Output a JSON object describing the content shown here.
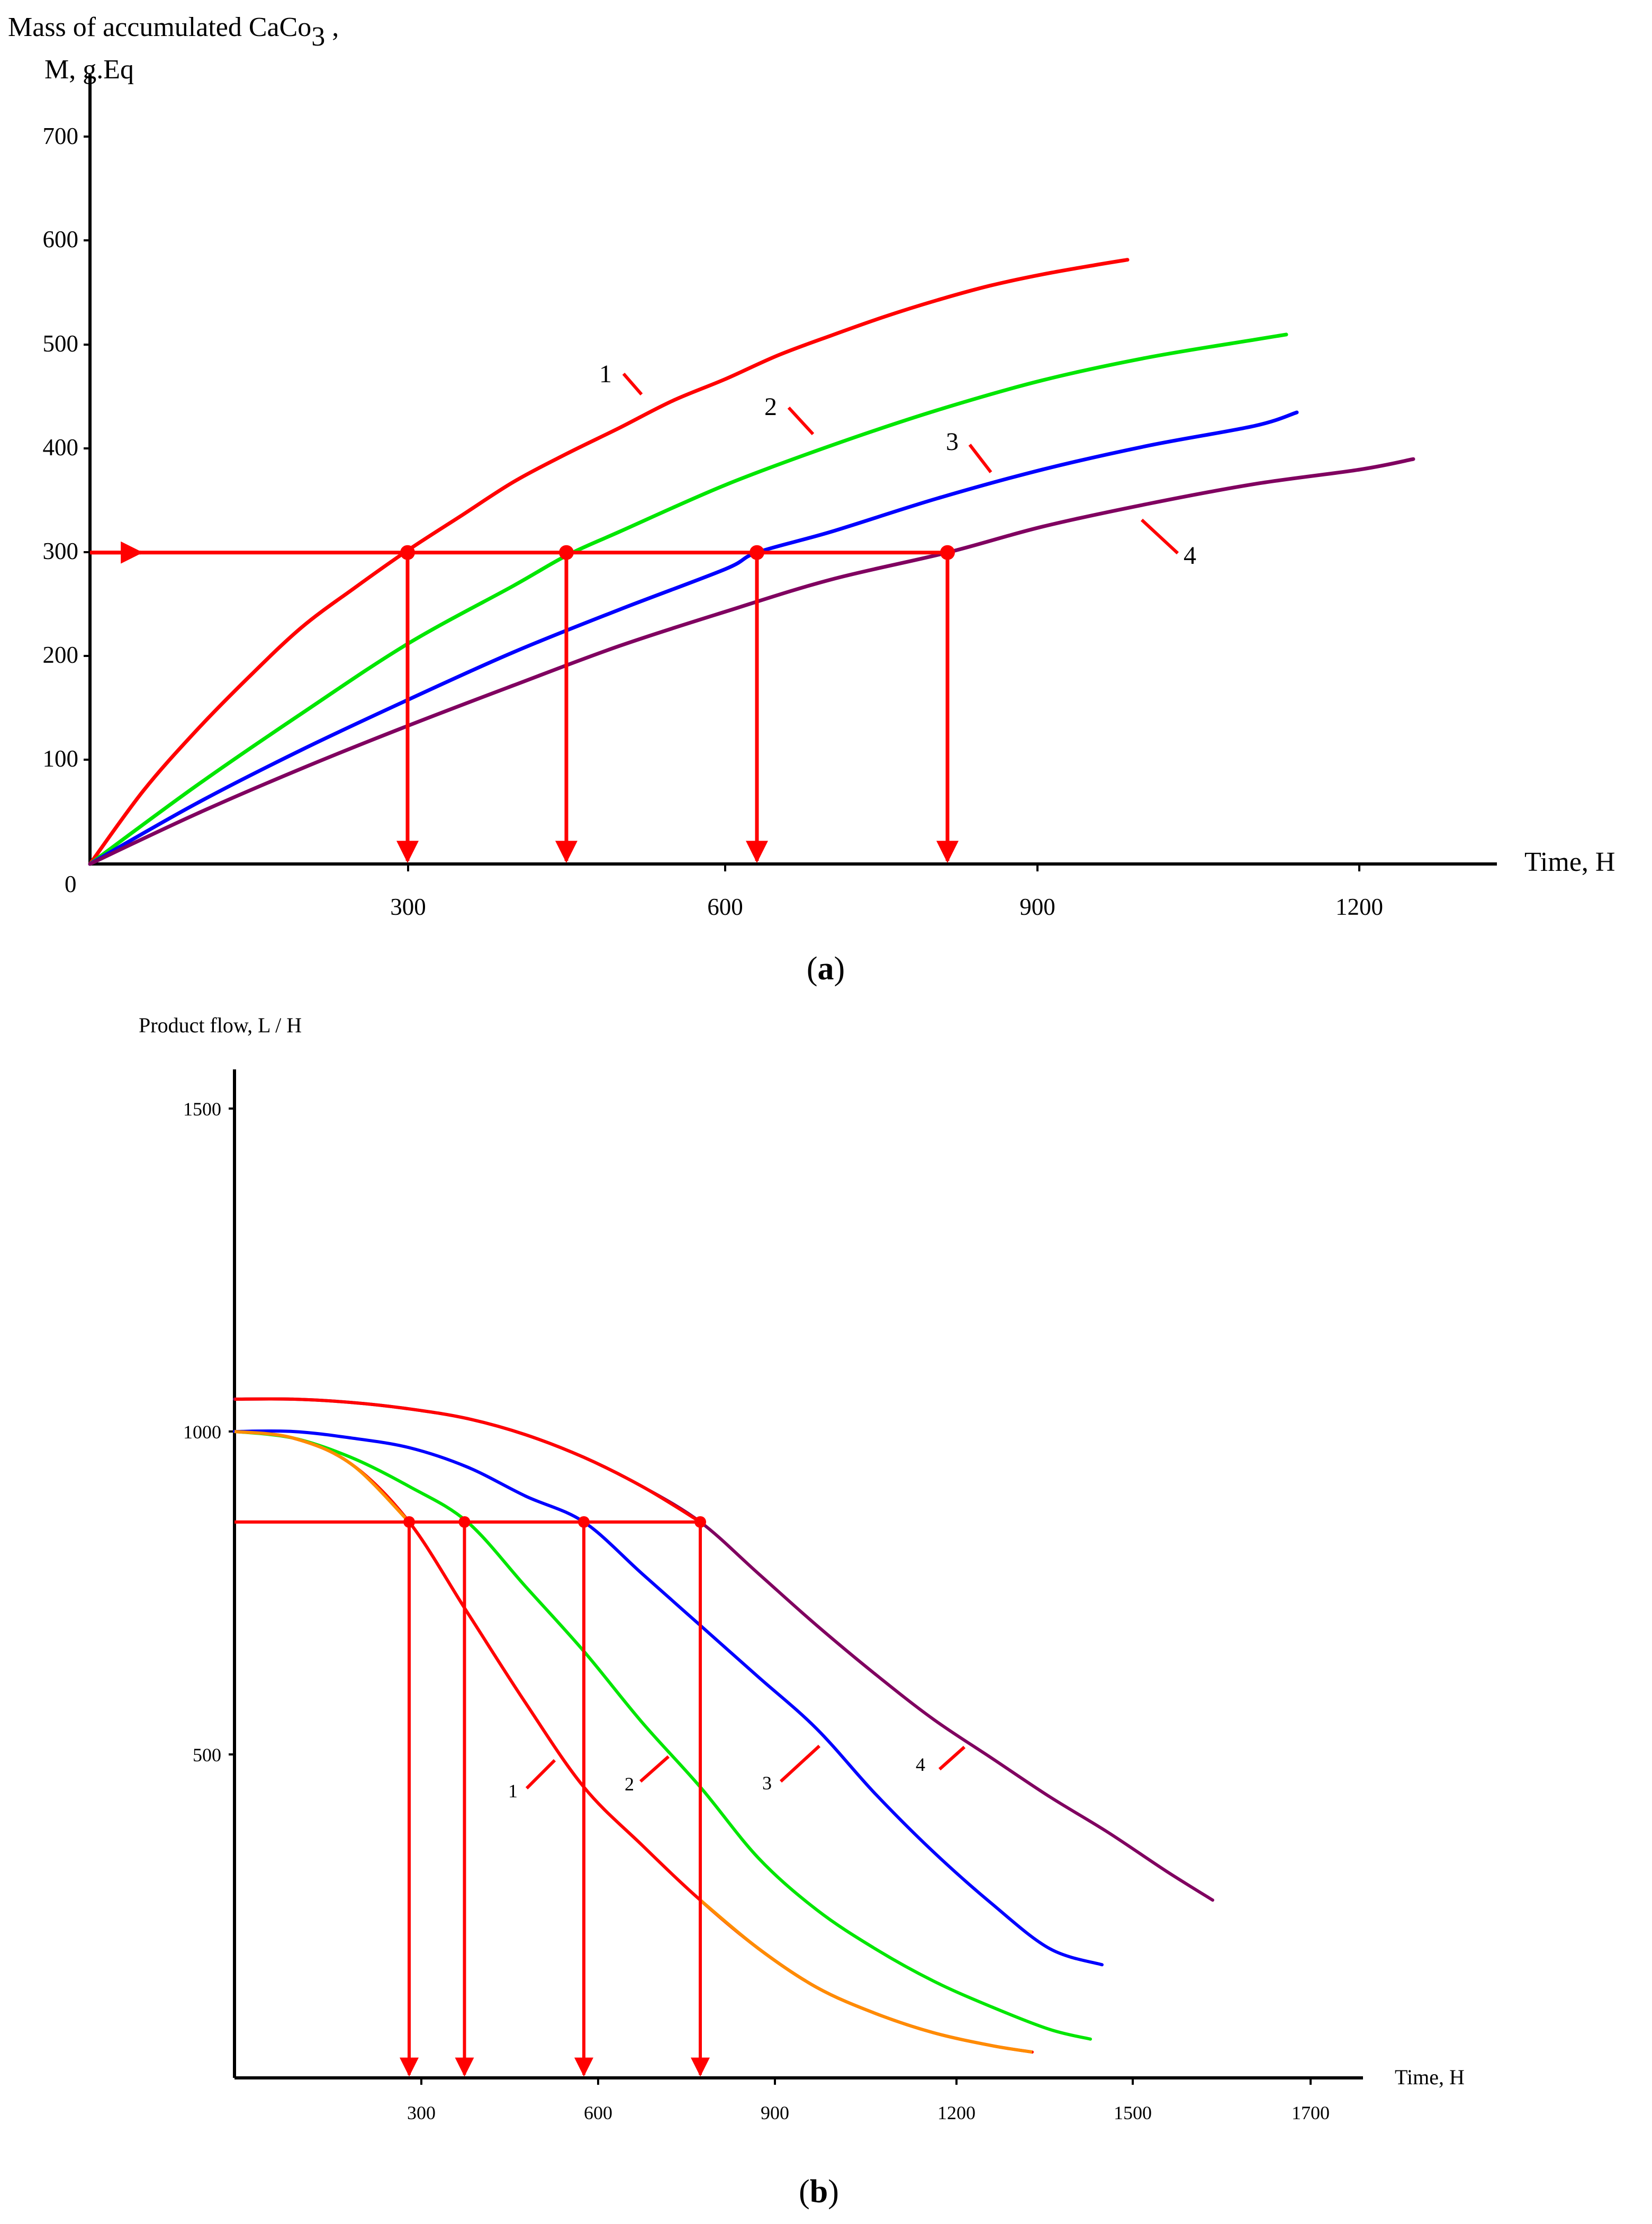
{
  "chart_data": [
    {
      "panel": "(a)",
      "panel_letter": "a",
      "type": "line",
      "ylabel_line1": "Mass of accumulated CaCo",
      "ylabel_subscript": "3",
      "ylabel_suffix": " ,",
      "ylabel_line2": "M, g.Eq",
      "xlabel": "Time, H",
      "origin_label": "0",
      "xlim": [
        0,
        1340
      ],
      "ylim": [
        0,
        730
      ],
      "xticks": [
        300,
        600,
        900,
        1200
      ],
      "yticks": [
        100,
        200,
        300,
        400,
        500,
        600,
        700
      ],
      "series": [
        {
          "name": "1",
          "color": "#ff0000",
          "x": [
            0,
            50,
            100,
            150,
            200,
            250,
            300,
            350,
            400,
            450,
            500,
            550,
            600,
            650,
            700,
            750,
            800,
            850,
            900,
            950,
            980
          ],
          "y": [
            0,
            70,
            128,
            180,
            228,
            266,
            302,
            335,
            368,
            395,
            420,
            446,
            467,
            490,
            509,
            527,
            543,
            557,
            568,
            577,
            582
          ]
        },
        {
          "name": "2",
          "color": "#00e600",
          "x": [
            0,
            100,
            200,
            300,
            400,
            450,
            500,
            600,
            700,
            800,
            900,
            1000,
            1100,
            1130
          ],
          "y": [
            0,
            75,
            145,
            212,
            268,
            297,
            320,
            365,
            403,
            437,
            466,
            488,
            505,
            510
          ]
        },
        {
          "name": "3",
          "color": "#0000ff",
          "x": [
            0,
            100,
            200,
            300,
            400,
            500,
            600,
            630,
            700,
            800,
            900,
            1000,
            1100,
            1140
          ],
          "y": [
            0,
            58,
            110,
            158,
            204,
            245,
            284,
            300,
            320,
            352,
            380,
            403,
            422,
            435
          ]
        },
        {
          "name": "4",
          "color": "#800060",
          "x": [
            0,
            100,
            200,
            300,
            400,
            500,
            600,
            700,
            810,
            900,
            1000,
            1100,
            1200,
            1250
          ],
          "y": [
            0,
            48,
            92,
            133,
            172,
            210,
            243,
            274,
            300,
            325,
            347,
            366,
            380,
            390
          ]
        }
      ],
      "reference_level": 300,
      "reference_points": [
        300,
        450,
        630,
        810
      ]
    },
    {
      "panel": "(b)",
      "panel_letter": "b",
      "type": "line",
      "ylabel": "Product flow, L / H",
      "xlabel": "Time, H",
      "xlim": [
        0,
        1930
      ],
      "ylim": [
        0,
        1550
      ],
      "xticks": [
        300,
        600,
        900,
        1200,
        1500,
        1700
      ],
      "yticks": [
        500,
        1000,
        1500
      ],
      "series": [
        {
          "name": "1",
          "color": "#ff0000",
          "x": [
            0,
            100,
            200,
            300,
            400,
            500,
            600,
            700,
            800,
            900,
            1000,
            1100,
            1200,
            1300,
            1370
          ],
          "y": [
            1000,
            990,
            950,
            860,
            720,
            580,
            450,
            360,
            275,
            200,
            140,
            100,
            70,
            50,
            40
          ]
        },
        {
          "name": "2",
          "color": "#00e600",
          "x": [
            0,
            100,
            200,
            300,
            400,
            500,
            600,
            700,
            800,
            900,
            1000,
            1100,
            1200,
            1300,
            1400,
            1470
          ],
          "y": [
            1000,
            990,
            960,
            915,
            860,
            760,
            660,
            550,
            450,
            340,
            260,
            200,
            150,
            110,
            75,
            60
          ]
        },
        {
          "name": "3",
          "color": "#0000ff",
          "x": [
            0,
            100,
            200,
            300,
            400,
            500,
            600,
            700,
            800,
            900,
            1000,
            1100,
            1200,
            1300,
            1400,
            1490
          ],
          "y": [
            1000,
            1000,
            990,
            975,
            945,
            900,
            860,
            780,
            700,
            620,
            540,
            440,
            350,
            270,
            200,
            175
          ]
        },
        {
          "name": "4",
          "color": "#800060",
          "x": [
            0,
            100,
            200,
            300,
            400,
            500,
            600,
            700,
            800,
            900,
            1000,
            1100,
            1200,
            1300,
            1400,
            1500,
            1600,
            1680
          ],
          "y": [
            1050,
            1050,
            1045,
            1035,
            1020,
            995,
            960,
            915,
            860,
            780,
            700,
            625,
            555,
            495,
            435,
            380,
            320,
            275
          ]
        }
      ],
      "reference_level": 860,
      "reference_points": [
        300,
        395,
        600,
        800
      ]
    }
  ]
}
